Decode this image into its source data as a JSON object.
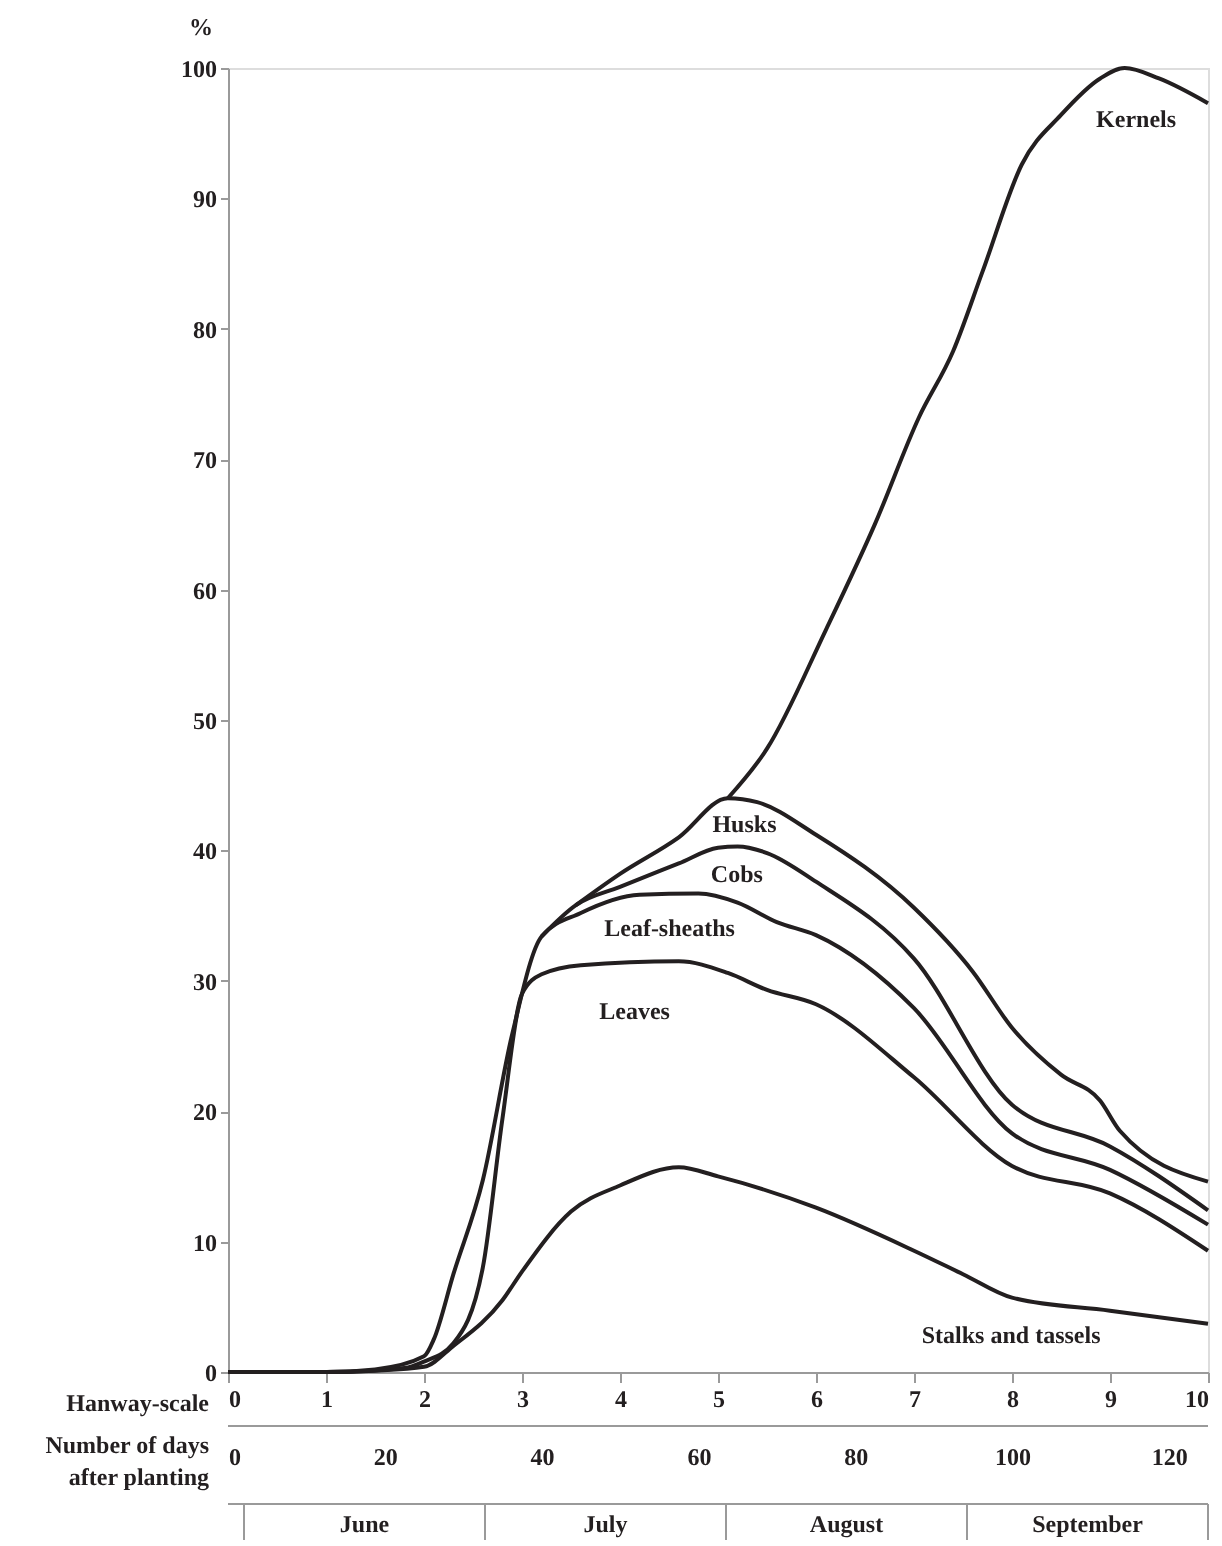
{
  "chart_data": {
    "type": "line",
    "ylabel": "%",
    "xlabel": "Hanway-scale",
    "x2label": "Number of days after planting",
    "xlim": [
      0,
      10
    ],
    "xticks": [
      0,
      1,
      2,
      3,
      4,
      5,
      6,
      7,
      8,
      9,
      10
    ],
    "x2lim": [
      0,
      125
    ],
    "x2ticks": [
      0,
      20,
      40,
      60,
      80,
      100,
      120
    ],
    "annotations": [
      "June",
      "July",
      "August",
      "September"
    ],
    "ylim": [
      0,
      100
    ],
    "yticks": [
      0,
      10,
      20,
      30,
      40,
      50,
      60,
      70,
      80,
      90,
      100
    ],
    "grid": false,
    "legend": false,
    "marker": "none",
    "line_style": "solid",
    "series": [
      {
        "name": "Stalks and tassels",
        "color": "#231f20",
        "x": [
          0,
          1,
          1.5,
          2,
          2.3,
          2.8,
          3,
          3.5,
          4,
          4.6,
          5,
          6,
          7,
          7.5,
          8,
          9,
          10
        ],
        "values": [
          0,
          0,
          0.1,
          0.4,
          2,
          5.5,
          7.7,
          12.3,
          14.3,
          15.7,
          15,
          12.6,
          9.3,
          7.5,
          5.7,
          4.7,
          3.7
        ]
      },
      {
        "name": "Leaves",
        "color": "#231f20",
        "x": [
          0,
          1,
          1.8,
          2,
          2.3,
          2.6,
          2.8,
          3,
          3.2,
          3.6,
          4.6,
          5.1,
          5.5,
          6,
          7,
          8,
          9,
          10
        ],
        "values": [
          0,
          0,
          0.3,
          0.8,
          2.2,
          8,
          19.4,
          29,
          30.5,
          31.2,
          31.5,
          30.6,
          29.3,
          28.2,
          22.6,
          15.8,
          13.7,
          9.3
        ]
      },
      {
        "name": "Leaf-sheaths",
        "color": "#231f20",
        "x": [
          0,
          1,
          1.5,
          2,
          2.1,
          2.3,
          2.6,
          2.9,
          3.2,
          3.6,
          4.2,
          4.8,
          5.2,
          5.6,
          6,
          7,
          8,
          9,
          10
        ],
        "values": [
          0,
          0,
          0.2,
          1.2,
          2.5,
          7.5,
          14.7,
          25.9,
          33.4,
          35.2,
          36.6,
          36.7,
          36,
          34.5,
          33.5,
          27.9,
          18.3,
          15.5,
          11.3
        ]
      },
      {
        "name": "Cobs",
        "color": "#231f20",
        "x": [
          3.2,
          3.55,
          4,
          4.6,
          5,
          5.2,
          5.5,
          6,
          7,
          8,
          9,
          10
        ],
        "values": [
          33.4,
          35.8,
          37.2,
          39,
          40.2,
          40.3,
          39.8,
          37.6,
          31.7,
          20.5,
          17.3,
          12.4
        ]
      },
      {
        "name": "Husks",
        "color": "#231f20",
        "x": [
          3.55,
          4,
          4.6,
          5.1,
          5.4,
          6,
          7,
          7.6,
          8,
          8.5,
          8.9,
          9.1,
          10
        ],
        "values": [
          35.8,
          38.2,
          41,
          44,
          43.7,
          41.2,
          35.6,
          30.7,
          26.4,
          22.8,
          20.8,
          18.5,
          14.6
        ]
      },
      {
        "name": "Kernels",
        "color": "#231f20",
        "x": [
          5.1,
          5.5,
          6.1,
          6.6,
          7.05,
          7.4,
          7.7,
          8.1,
          8.5,
          8.9,
          9.15,
          9.5,
          10
        ],
        "values": [
          44,
          47.8,
          56.9,
          65,
          73.2,
          78.3,
          84.4,
          92.6,
          96.4,
          99.2,
          100,
          99.2,
          97.3
        ]
      }
    ]
  }
}
